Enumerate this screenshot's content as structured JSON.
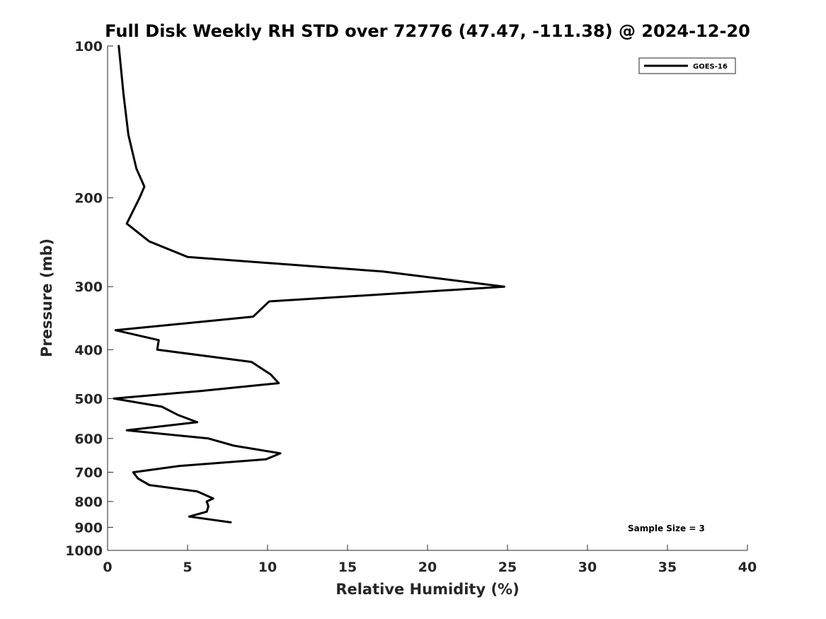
{
  "chart_data": {
    "type": "line",
    "title": "Full Disk Weekly RH STD over 72776 (47.47, -111.38) @ 2024-12-20",
    "xlabel": "Relative Humidity (%)",
    "ylabel": "Pressure (mb)",
    "xlim": [
      0,
      40
    ],
    "ylim": [
      100,
      1000
    ],
    "y_scale": "log",
    "y_reversed": true,
    "x_ticks": [
      0,
      5,
      10,
      15,
      20,
      25,
      30,
      35,
      40
    ],
    "y_ticks": [
      100,
      200,
      300,
      400,
      500,
      600,
      700,
      800,
      900,
      1000
    ],
    "grid": false,
    "legend": {
      "position": "top-right",
      "entries": [
        "GOES-16"
      ]
    },
    "annotation": "Sample Size = 3",
    "series": [
      {
        "name": "GOES-16",
        "color": "#000000",
        "points": [
          {
            "x": 0.7,
            "p": 100
          },
          {
            "x": 1.0,
            "p": 125
          },
          {
            "x": 1.3,
            "p": 150
          },
          {
            "x": 1.8,
            "p": 175
          },
          {
            "x": 2.3,
            "p": 190
          },
          {
            "x": 2.0,
            "p": 200
          },
          {
            "x": 1.2,
            "p": 225
          },
          {
            "x": 2.6,
            "p": 244
          },
          {
            "x": 5.0,
            "p": 262
          },
          {
            "x": 17.2,
            "p": 280
          },
          {
            "x": 24.8,
            "p": 300
          },
          {
            "x": 10.1,
            "p": 321
          },
          {
            "x": 9.1,
            "p": 344
          },
          {
            "x": 0.5,
            "p": 366
          },
          {
            "x": 3.2,
            "p": 383
          },
          {
            "x": 3.1,
            "p": 400
          },
          {
            "x": 9.0,
            "p": 423
          },
          {
            "x": 10.2,
            "p": 448
          },
          {
            "x": 10.7,
            "p": 466
          },
          {
            "x": 5.8,
            "p": 483
          },
          {
            "x": 0.4,
            "p": 500
          },
          {
            "x": 3.4,
            "p": 519
          },
          {
            "x": 4.4,
            "p": 539
          },
          {
            "x": 5.6,
            "p": 557
          },
          {
            "x": 1.2,
            "p": 578
          },
          {
            "x": 6.3,
            "p": 600
          },
          {
            "x": 7.9,
            "p": 620
          },
          {
            "x": 10.8,
            "p": 642
          },
          {
            "x": 9.9,
            "p": 660
          },
          {
            "x": 4.5,
            "p": 680
          },
          {
            "x": 1.6,
            "p": 700
          },
          {
            "x": 1.9,
            "p": 720
          },
          {
            "x": 2.6,
            "p": 742
          },
          {
            "x": 5.6,
            "p": 764
          },
          {
            "x": 6.6,
            "p": 789
          },
          {
            "x": 6.2,
            "p": 800
          },
          {
            "x": 6.3,
            "p": 818
          },
          {
            "x": 6.2,
            "p": 838
          },
          {
            "x": 5.1,
            "p": 857
          },
          {
            "x": 7.7,
            "p": 880
          }
        ]
      }
    ]
  }
}
